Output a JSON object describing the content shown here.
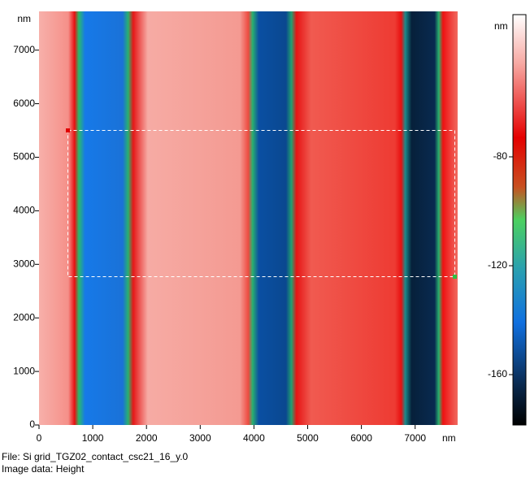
{
  "image": {
    "x_axis": {
      "unit": "nm",
      "ticks": [
        "0",
        "1000",
        "2000",
        "3000",
        "4000",
        "5000",
        "6000",
        "7000"
      ]
    },
    "y_axis": {
      "unit": "nm",
      "ticks": [
        "0",
        "1000",
        "2000",
        "3000",
        "4000",
        "5000",
        "6000",
        "7000"
      ]
    }
  },
  "color_bar": {
    "unit": "nm",
    "ticks": [
      "-80",
      "-120",
      "-160"
    ]
  },
  "footer": {
    "file": "File: Si grid_TGZ02_contact_csc21_16_y.0",
    "image_data": "Image data: Height"
  }
}
